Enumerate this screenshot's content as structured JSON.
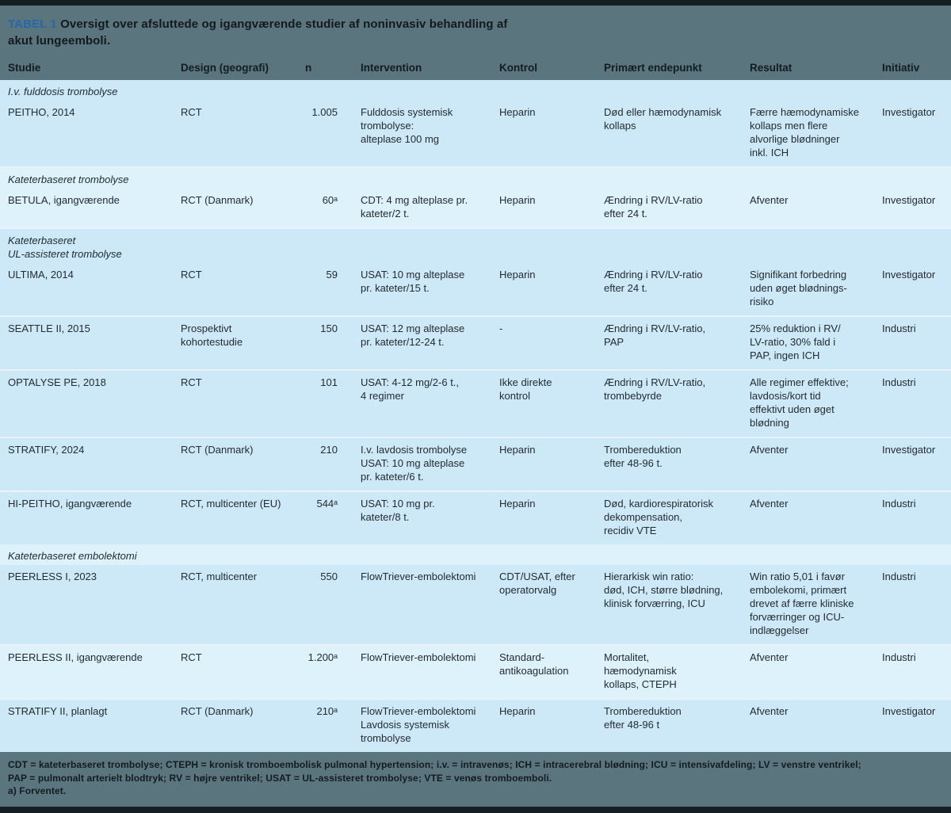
{
  "title": {
    "label": "TABEL 1",
    "text": "Oversigt over afsluttede og igangværende studier af noninvasiv behandling af akut lungeemboli."
  },
  "columns": {
    "studie": "Studie",
    "design": "Design (geografi)",
    "n": "n",
    "intervention": "Intervention",
    "kontrol": "Kontrol",
    "endepunkt": "Primært endepunkt",
    "resultat": "Resultat",
    "initiativ": "Initiativ"
  },
  "rows": [
    {
      "type": "section",
      "studie": "I.v. fulddosis trombolyse"
    },
    {
      "type": "study",
      "studie": "PEITHO, 2014",
      "design": "RCT",
      "n": "1.005",
      "intervention": "Fulddosis systemisk\ntrombolyse:\nalteplase 100 mg",
      "kontrol": "Heparin",
      "endepunkt": "Død eller hæmodynamisk\nkollaps",
      "resultat": "Færre hæmodynamiske\nkollaps men flere\nalvorlige blødninger\ninkl. ICH",
      "initiativ": "Investigator"
    },
    {
      "type": "section",
      "studie": "Kateterbaseret trombolyse"
    },
    {
      "type": "study",
      "studie": "BETULA, igangværende",
      "design": "RCT (Danmark)",
      "n": "60ᵃ",
      "intervention": "CDT: 4 mg alteplase pr.\nkateter/2 t.",
      "kontrol": "Heparin",
      "endepunkt": "Ændring i RV/LV-ratio\nefter 24 t.",
      "resultat": "Afventer",
      "initiativ": "Investigator"
    },
    {
      "type": "section",
      "studie": "Kateterbaseret\nUL-assisteret trombolyse"
    },
    {
      "type": "study",
      "studie": "ULTIMA, 2014",
      "design": "RCT",
      "n": "59",
      "intervention": "USAT: 10 mg alteplase\npr. kateter/15 t.",
      "kontrol": "Heparin",
      "endepunkt": "Ændring i RV/LV-ratio\nefter 24 t.",
      "resultat": "Signifikant forbedring\nuden øget blødnings-\nrisiko",
      "initiativ": "Investigator"
    },
    {
      "type": "study",
      "studie": "SEATTLE II, 2015",
      "design": "Prospektivt\nkohortestudie",
      "n": "150",
      "intervention": "USAT: 12 mg alteplase\npr. kateter/12-24 t.",
      "kontrol": "-",
      "endepunkt": "Ændring i RV/LV-ratio,\nPAP",
      "resultat": "25% reduktion i RV/\nLV-ratio, 30% fald i\nPAP, ingen ICH",
      "initiativ": "Industri"
    },
    {
      "type": "study",
      "studie": "OPTALYSE PE, 2018",
      "design": "RCT",
      "n": "101",
      "intervention": "USAT: 4-12 mg/2-6 t.,\n4 regimer",
      "kontrol": "Ikke direkte\nkontrol",
      "endepunkt": "Ændring i RV/LV-ratio,\ntrombebyrde",
      "resultat": "Alle regimer effektive;\nlavdosis/kort tid\neffektivt uden øget\nblødning",
      "initiativ": "Industri"
    },
    {
      "type": "study",
      "studie": "STRATIFY, 2024",
      "design": "RCT (Danmark)",
      "n": "210",
      "intervention": "I.v. lavdosis trombolyse\nUSAT: 10 mg alteplase\npr. kateter/6 t.",
      "kontrol": "Heparin",
      "endepunkt": "Trombereduktion\nefter 48-96 t.",
      "resultat": "Afventer",
      "initiativ": "Investigator"
    },
    {
      "type": "study",
      "studie": "HI-PEITHO, igangværende",
      "design": "RCT, multicenter (EU)",
      "n": "544ᵃ",
      "intervention": "USAT: 10 mg pr.\nkateter/8 t.",
      "kontrol": "Heparin",
      "endepunkt": "Død, kardiorespiratorisk\ndekompensation,\nrecidiv VTE",
      "resultat": "Afventer",
      "initiativ": "Industri"
    },
    {
      "type": "section",
      "studie": "Kateterbaseret embolektomi"
    },
    {
      "type": "study",
      "studie": "PEERLESS I, 2023",
      "design": "RCT, multicenter",
      "n": "550",
      "intervention": "FlowTriever-embolektomi",
      "kontrol": "CDT/USAT, efter\noperatorvalg",
      "endepunkt": "Hierarkisk win ratio:\ndød, ICH, større blødning,\nklinisk forværring, ICU",
      "resultat": "Win ratio 5,01 i favør\nembolekomi, primært\ndrevet af færre kliniske\nforværringer og ICU-\nindlæggelser",
      "initiativ": "Industri"
    },
    {
      "type": "study",
      "studie": "PEERLESS II, igangværende",
      "design": "RCT",
      "n": "1.200ᵃ",
      "intervention": "FlowTriever-embolektomi",
      "kontrol": "Standard-\nantikoagulation",
      "endepunkt": "Mortalitet,\nhæmodynamisk\nkollaps, CTEPH",
      "resultat": "Afventer",
      "initiativ": "Industri"
    },
    {
      "type": "study",
      "studie": "STRATIFY II, planlagt",
      "design": "RCT (Danmark)",
      "n": "210ᵃ",
      "intervention": "FlowTriever-embolektomi\nLavdosis systemisk\ntrombolyse",
      "kontrol": "Heparin",
      "endepunkt": "Trombereduktion\nefter 48-96 t",
      "resultat": "Afventer",
      "initiativ": "Investigator"
    }
  ],
  "footnotes": {
    "line1": "CDT = kateterbaseret trombolyse; CTEPH = kronisk tromboembolisk pulmonal hypertension; i.v. = intravenøs; ICH = intracerebral blødning; ICU = intensivafdeling; LV = venstre ventrikel;",
    "line2": "PAP = pulmonalt arterielt blodtryk; RV = højre ventrikel; USAT = UL-assisteret trombolyse; VTE = venøs tromboemboli.",
    "line3": "a) Forventet."
  },
  "colors": {
    "band_teal": "#5a757d",
    "row_medium_blue": "#cde9f7",
    "row_light_blue": "#def2fb",
    "title_label_blue": "#2767ab",
    "dark_border": "#141f23",
    "separator": "#e9f2f6"
  }
}
